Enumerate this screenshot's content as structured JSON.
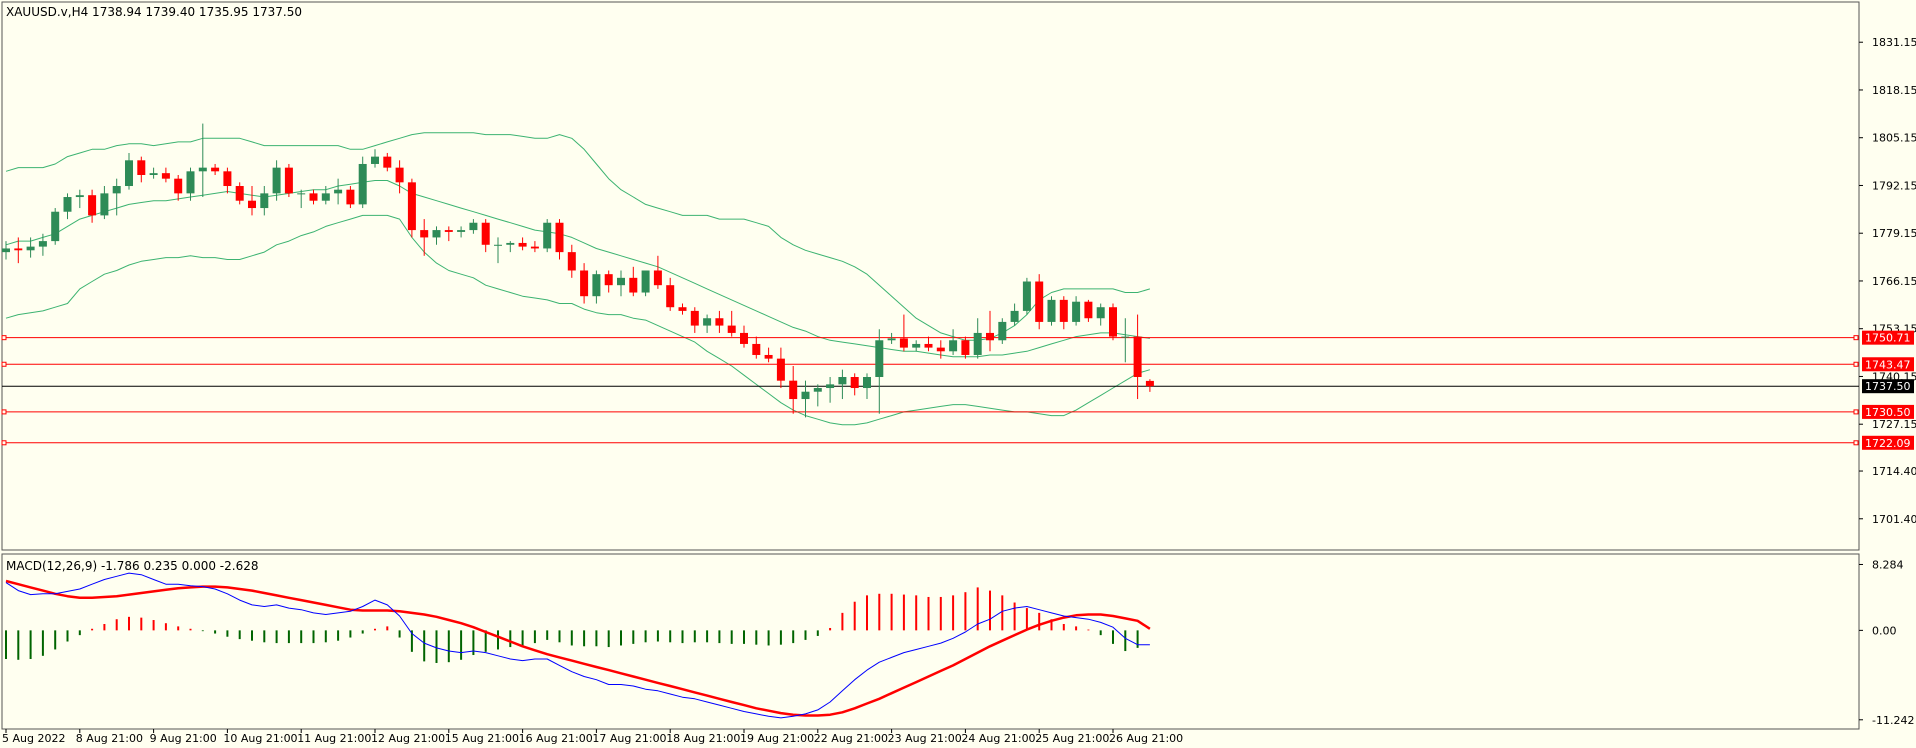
{
  "chart_data": {
    "type": "candlestick",
    "symbol_header": "XAUUSD.v,H4  1738.94 1739.40 1735.95 1737.50",
    "price_axis": {
      "ylim": [
        1692.9,
        1842.1
      ],
      "ticks": [
        "1831.15",
        "1818.15",
        "1805.15",
        "1792.15",
        "1779.15",
        "1766.15",
        "1753.15",
        "1740.15",
        "1727.15",
        "1714.40",
        "1701.40"
      ]
    },
    "x_axis": {
      "ticks": [
        {
          "label": "5 Aug 2022",
          "bar": 0
        },
        {
          "label": "8 Aug 21:00",
          "bar": 6
        },
        {
          "label": "9 Aug 21:00",
          "bar": 12
        },
        {
          "label": "10 Aug 21:00",
          "bar": 18
        },
        {
          "label": "11 Aug 21:00",
          "bar": 24
        },
        {
          "label": "12 Aug 21:00",
          "bar": 30
        },
        {
          "label": "15 Aug 21:00",
          "bar": 36
        },
        {
          "label": "16 Aug 21:00",
          "bar": 42
        },
        {
          "label": "17 Aug 21:00",
          "bar": 48
        },
        {
          "label": "18 Aug 21:00",
          "bar": 54
        },
        {
          "label": "19 Aug 21:00",
          "bar": 60
        },
        {
          "label": "22 Aug 21:00",
          "bar": 66
        },
        {
          "label": "23 Aug 21:00",
          "bar": 72
        },
        {
          "label": "24 Aug 21:00",
          "bar": 78
        },
        {
          "label": "25 Aug 21:00",
          "bar": 84
        },
        {
          "label": "26 Aug 21:00",
          "bar": 90
        }
      ]
    },
    "candles": [
      [
        1774.0,
        1777.0,
        1772.0,
        1775.0
      ],
      [
        1775.0,
        1778.0,
        1771.0,
        1774.5
      ],
      [
        1774.5,
        1778.0,
        1772.5,
        1775.5
      ],
      [
        1775.5,
        1779.0,
        1773.0,
        1777.0
      ],
      [
        1777.0,
        1786.0,
        1776.0,
        1785.0
      ],
      [
        1785.0,
        1790.0,
        1783.0,
        1789.0
      ],
      [
        1789.0,
        1791.0,
        1786.0,
        1789.5
      ],
      [
        1789.5,
        1791.0,
        1782.0,
        1784.0
      ],
      [
        1784.0,
        1792.0,
        1783.0,
        1790.0
      ],
      [
        1790.0,
        1794.0,
        1784.0,
        1792.0
      ],
      [
        1792.0,
        1801.0,
        1791.0,
        1799.0
      ],
      [
        1799.0,
        1800.0,
        1793.0,
        1795.0
      ],
      [
        1795.0,
        1797.0,
        1794.0,
        1795.5
      ],
      [
        1795.5,
        1797.0,
        1793.0,
        1794.0
      ],
      [
        1794.0,
        1795.0,
        1788.0,
        1790.0
      ],
      [
        1790.0,
        1797.0,
        1788.0,
        1796.0
      ],
      [
        1796.0,
        1809.0,
        1789.0,
        1797.0
      ],
      [
        1797.0,
        1798.0,
        1795.0,
        1796.0
      ],
      [
        1796.0,
        1797.0,
        1790.0,
        1792.0
      ],
      [
        1792.0,
        1793.0,
        1787.0,
        1788.0
      ],
      [
        1788.0,
        1792.0,
        1784.0,
        1786.0
      ],
      [
        1786.0,
        1792.0,
        1784.0,
        1790.0
      ],
      [
        1790.0,
        1799.0,
        1788.0,
        1797.0
      ],
      [
        1797.0,
        1798.0,
        1789.0,
        1790.0
      ],
      [
        1790.0,
        1791.0,
        1786.0,
        1790.0
      ],
      [
        1790.0,
        1791.0,
        1787.0,
        1788.0
      ],
      [
        1788.0,
        1792.0,
        1787.0,
        1790.0
      ],
      [
        1790.0,
        1794.0,
        1787.0,
        1791.0
      ],
      [
        1791.0,
        1792.0,
        1786.0,
        1787.0
      ],
      [
        1787.0,
        1800.0,
        1786.0,
        1798.0
      ],
      [
        1798.0,
        1802.0,
        1797.0,
        1800.0
      ],
      [
        1800.0,
        1801.0,
        1796.0,
        1797.0
      ],
      [
        1797.0,
        1799.0,
        1790.0,
        1793.0
      ],
      [
        1793.0,
        1794.0,
        1778.0,
        1780.0
      ],
      [
        1780.0,
        1783.0,
        1773.0,
        1778.0
      ],
      [
        1778.0,
        1781.0,
        1776.0,
        1780.0
      ],
      [
        1780.0,
        1781.0,
        1777.0,
        1779.5
      ],
      [
        1779.5,
        1781.0,
        1778.0,
        1780.0
      ],
      [
        1780.0,
        1783.0,
        1779.0,
        1782.0
      ],
      [
        1782.0,
        1783.0,
        1774.0,
        1776.0
      ],
      [
        1776.0,
        1778.0,
        1771.0,
        1776.0
      ],
      [
        1776.0,
        1777.0,
        1774.0,
        1776.5
      ],
      [
        1776.5,
        1778.0,
        1774.5,
        1775.5
      ],
      [
        1775.5,
        1777.0,
        1774.0,
        1775.0
      ],
      [
        1775.0,
        1783.0,
        1774.0,
        1782.0
      ],
      [
        1782.0,
        1783.0,
        1772.0,
        1774.0
      ],
      [
        1774.0,
        1776.0,
        1767.0,
        1769.0
      ],
      [
        1769.0,
        1771.0,
        1760.0,
        1762.0
      ],
      [
        1762.0,
        1769.0,
        1760.0,
        1768.0
      ],
      [
        1768.0,
        1769.0,
        1763.0,
        1765.0
      ],
      [
        1765.0,
        1769.0,
        1762.0,
        1767.0
      ],
      [
        1767.0,
        1770.0,
        1762.0,
        1763.0
      ],
      [
        1763.0,
        1769.0,
        1762.0,
        1769.0
      ],
      [
        1769.0,
        1773.0,
        1764.0,
        1765.0
      ],
      [
        1765.0,
        1767.0,
        1758.0,
        1759.0
      ],
      [
        1759.0,
        1760.0,
        1757.0,
        1758.0
      ],
      [
        1758.0,
        1759.0,
        1752.0,
        1754.0
      ],
      [
        1754.0,
        1757.0,
        1752.0,
        1756.0
      ],
      [
        1756.0,
        1758.0,
        1752.0,
        1754.0
      ],
      [
        1754.0,
        1758.0,
        1751.0,
        1752.0
      ],
      [
        1752.0,
        1754.0,
        1748.0,
        1749.0
      ],
      [
        1749.0,
        1751.0,
        1745.0,
        1746.0
      ],
      [
        1746.0,
        1748.0,
        1744.0,
        1745.0
      ],
      [
        1745.0,
        1748.0,
        1737.0,
        1739.0
      ],
      [
        1739.0,
        1743.0,
        1730.0,
        1734.0
      ],
      [
        1734.0,
        1739.0,
        1729.0,
        1736.0
      ],
      [
        1736.0,
        1738.0,
        1732.0,
        1737.0
      ],
      [
        1737.0,
        1740.0,
        1733.0,
        1738.0
      ],
      [
        1738.0,
        1742.0,
        1734.0,
        1740.0
      ],
      [
        1740.0,
        1741.0,
        1735.0,
        1737.0
      ],
      [
        1737.0,
        1741.0,
        1734.0,
        1740.0
      ],
      [
        1740.0,
        1753.0,
        1730.0,
        1750.0
      ],
      [
        1750.0,
        1752.0,
        1749.0,
        1750.5
      ],
      [
        1750.5,
        1757.0,
        1747.0,
        1748.0
      ],
      [
        1748.0,
        1750.0,
        1747.0,
        1749.0
      ],
      [
        1749.0,
        1751.0,
        1747.0,
        1748.0
      ],
      [
        1748.0,
        1750.0,
        1745.0,
        1747.0
      ],
      [
        1747.0,
        1753.0,
        1746.0,
        1750.0
      ],
      [
        1750.0,
        1751.0,
        1745.0,
        1746.0
      ],
      [
        1746.0,
        1756.0,
        1745.0,
        1752.0
      ],
      [
        1752.0,
        1758.0,
        1747.0,
        1750.0
      ],
      [
        1750.0,
        1756.0,
        1749.0,
        1755.0
      ],
      [
        1755.0,
        1760.0,
        1754.0,
        1758.0
      ],
      [
        1758.0,
        1767.0,
        1757.0,
        1766.0
      ],
      [
        1766.0,
        1768.0,
        1753.0,
        1755.0
      ],
      [
        1755.0,
        1762.0,
        1754.0,
        1761.0
      ],
      [
        1761.0,
        1762.0,
        1753.0,
        1755.0
      ],
      [
        1755.0,
        1762.0,
        1754.0,
        1760.5
      ],
      [
        1760.5,
        1761.0,
        1755.0,
        1756.0
      ],
      [
        1756.0,
        1760.0,
        1754.0,
        1759.0
      ],
      [
        1759.0,
        1760.0,
        1750.0,
        1751.0
      ],
      [
        1751.0,
        1756.0,
        1744.0,
        1751.0
      ],
      [
        1751.0,
        1757.0,
        1734.0,
        1740.0
      ],
      [
        1738.94,
        1739.4,
        1735.95,
        1737.5
      ]
    ],
    "bollinger": {
      "upper": [
        1796.0,
        1797.0,
        1797.0,
        1797.0,
        1798.0,
        1800.0,
        1801.0,
        1802.0,
        1802.0,
        1803.0,
        1803.5,
        1803.5,
        1803.0,
        1803.5,
        1804.0,
        1804.0,
        1805.0,
        1805.0,
        1805.0,
        1805.0,
        1804.0,
        1803.0,
        1803.0,
        1803.0,
        1803.0,
        1803.0,
        1803.0,
        1803.0,
        1802.0,
        1802.0,
        1803.0,
        1804.0,
        1805.0,
        1806.0,
        1806.5,
        1806.5,
        1806.5,
        1806.5,
        1806.5,
        1806.0,
        1806.0,
        1806.0,
        1805.5,
        1805.0,
        1805.0,
        1806.0,
        1805.0,
        1802.0,
        1798.0,
        1794.0,
        1791.0,
        1789.0,
        1787.0,
        1786.0,
        1785.0,
        1784.0,
        1784.0,
        1784.0,
        1783.0,
        1783.0,
        1783.0,
        1782.0,
        1781.0,
        1778.0,
        1776.0,
        1774.5,
        1773.5,
        1772.5,
        1771.5,
        1770.0,
        1768.0,
        1765.0,
        1762.0,
        1759.0,
        1756.0,
        1754.0,
        1752.0,
        1751.0,
        1750.0,
        1750.0,
        1750.5,
        1752.0,
        1754.0,
        1757.0,
        1761.0,
        1763.0,
        1764.0,
        1764.0,
        1764.0,
        1764.0,
        1764.0,
        1763.0,
        1763.0,
        1764.0
      ],
      "middle": [
        1776.0,
        1777.0,
        1777.0,
        1778.0,
        1779.0,
        1781.0,
        1783.0,
        1784.0,
        1785.0,
        1786.0,
        1787.0,
        1787.5,
        1788.0,
        1788.0,
        1788.5,
        1789.0,
        1789.5,
        1790.0,
        1790.5,
        1790.0,
        1789.5,
        1789.0,
        1789.5,
        1790.0,
        1790.5,
        1791.0,
        1791.0,
        1792.0,
        1792.5,
        1793.0,
        1793.5,
        1793.5,
        1792.0,
        1790.0,
        1789.0,
        1788.0,
        1787.0,
        1786.0,
        1785.0,
        1784.0,
        1783.0,
        1782.0,
        1781.0,
        1780.0,
        1779.5,
        1779.0,
        1778.0,
        1776.5,
        1775.0,
        1774.0,
        1773.0,
        1772.0,
        1771.0,
        1770.0,
        1768.5,
        1767.0,
        1765.5,
        1764.0,
        1762.5,
        1761.0,
        1759.5,
        1758.0,
        1756.5,
        1755.0,
        1753.5,
        1752.5,
        1751.0,
        1750.0,
        1749.5,
        1749.0,
        1748.5,
        1748.0,
        1747.5,
        1747.0,
        1747.0,
        1746.5,
        1746.0,
        1745.5,
        1745.5,
        1745.5,
        1746.0,
        1746.0,
        1746.5,
        1747.0,
        1748.0,
        1749.0,
        1750.0,
        1751.0,
        1751.5,
        1752.0,
        1752.0,
        1751.5,
        1751.0,
        1750.5
      ],
      "lower": [
        1756.0,
        1757.0,
        1757.5,
        1758.0,
        1759.0,
        1760.0,
        1764.0,
        1766.0,
        1768.0,
        1769.0,
        1770.5,
        1771.5,
        1772.0,
        1772.5,
        1772.5,
        1773.0,
        1772.5,
        1772.5,
        1772.0,
        1772.0,
        1773.0,
        1774.0,
        1776.0,
        1777.0,
        1778.5,
        1779.5,
        1781.0,
        1782.0,
        1783.0,
        1784.0,
        1784.0,
        1784.0,
        1783.0,
        1778.0,
        1774.0,
        1771.0,
        1769.0,
        1768.0,
        1767.0,
        1765.0,
        1764.0,
        1763.0,
        1762.0,
        1761.5,
        1761.0,
        1760.0,
        1760.0,
        1758.5,
        1757.5,
        1757.0,
        1757.0,
        1756.0,
        1755.5,
        1754.0,
        1752.5,
        1751.0,
        1749.5,
        1747.0,
        1745.0,
        1743.0,
        1740.5,
        1738.0,
        1735.5,
        1733.0,
        1731.0,
        1729.5,
        1728.5,
        1727.5,
        1727.0,
        1727.0,
        1727.5,
        1728.5,
        1729.5,
        1730.5,
        1731.0,
        1731.5,
        1732.0,
        1732.5,
        1732.5,
        1732.0,
        1731.5,
        1731.0,
        1730.5,
        1730.5,
        1730.0,
        1729.5,
        1729.5,
        1731.0,
        1733.0,
        1735.0,
        1737.0,
        1739.0,
        1741.0,
        1742.0
      ]
    },
    "hlines": [
      {
        "label": "1750.71",
        "value": 1750.71,
        "color": "#ff0000"
      },
      {
        "label": "1743.47",
        "value": 1743.47,
        "color": "#ff0000"
      },
      {
        "label": "1737.50",
        "value": 1737.5,
        "color": "#000000"
      },
      {
        "label": "1730.50",
        "value": 1730.5,
        "color": "#ff0000"
      },
      {
        "label": "1722.09",
        "value": 1722.09,
        "color": "#ff0000"
      }
    ],
    "macd": {
      "header": "MACD(12,26,9) -1.786 0.235 0.000 -2.628",
      "ylim": [
        -12.4,
        9.6
      ],
      "ticks": [
        "8.284",
        "0.00",
        "-11.242"
      ],
      "signal": [
        6.2,
        5.8,
        5.4,
        5.0,
        4.6,
        4.3,
        4.1,
        4.1,
        4.2,
        4.3,
        4.5,
        4.7,
        4.9,
        5.1,
        5.3,
        5.4,
        5.5,
        5.5,
        5.4,
        5.2,
        5.0,
        4.7,
        4.4,
        4.1,
        3.8,
        3.5,
        3.2,
        2.9,
        2.6,
        2.5,
        2.5,
        2.5,
        2.4,
        2.2,
        2.0,
        1.7,
        1.3,
        0.9,
        0.4,
        -0.2,
        -0.8,
        -1.4,
        -2.0,
        -2.5,
        -3.0,
        -3.4,
        -3.8,
        -4.2,
        -4.6,
        -5.0,
        -5.4,
        -5.8,
        -6.2,
        -6.6,
        -7.0,
        -7.4,
        -7.8,
        -8.2,
        -8.6,
        -9.0,
        -9.4,
        -9.8,
        -10.1,
        -10.4,
        -10.6,
        -10.7,
        -10.7,
        -10.6,
        -10.3,
        -9.8,
        -9.2,
        -8.6,
        -7.9,
        -7.2,
        -6.5,
        -5.8,
        -5.1,
        -4.4,
        -3.6,
        -2.8,
        -2.0,
        -1.3,
        -0.6,
        0.1,
        0.7,
        1.2,
        1.6,
        1.9,
        2.0,
        2.0,
        1.8,
        1.5,
        1.2,
        0.2
      ],
      "macd_line": [
        6.0,
        5.0,
        4.5,
        4.6,
        4.6,
        4.9,
        5.2,
        5.8,
        6.4,
        6.8,
        7.2,
        7.0,
        6.4,
        5.8,
        5.8,
        5.6,
        5.5,
        5.2,
        4.6,
        3.8,
        3.2,
        3.0,
        3.2,
        2.8,
        2.6,
        2.2,
        2.0,
        2.2,
        2.4,
        3.0,
        3.8,
        3.2,
        1.8,
        -0.4,
        -1.6,
        -2.2,
        -2.6,
        -2.8,
        -2.6,
        -2.8,
        -3.2,
        -3.6,
        -3.8,
        -3.6,
        -3.6,
        -4.4,
        -5.2,
        -5.8,
        -6.2,
        -6.8,
        -6.8,
        -7.0,
        -7.4,
        -7.6,
        -8.0,
        -8.4,
        -8.6,
        -9.0,
        -9.4,
        -9.8,
        -10.2,
        -10.5,
        -10.8,
        -11.0,
        -10.8,
        -10.5,
        -10.0,
        -9.0,
        -7.6,
        -6.2,
        -5.0,
        -4.0,
        -3.4,
        -2.8,
        -2.4,
        -2.0,
        -1.6,
        -1.0,
        -0.2,
        0.8,
        1.4,
        2.4,
        2.8,
        3.0,
        2.6,
        2.2,
        1.8,
        1.6,
        1.4,
        1.0,
        0.4,
        -1.0,
        -1.8,
        -1.8
      ],
      "histogram": [
        -3.6,
        -3.7,
        -3.6,
        -3.2,
        -2.4,
        -1.4,
        -0.6,
        0.2,
        0.8,
        1.4,
        1.7,
        1.6,
        1.3,
        0.9,
        0.5,
        0.2,
        -0.1,
        -0.4,
        -0.8,
        -1.1,
        -1.3,
        -1.5,
        -1.6,
        -1.6,
        -1.6,
        -1.6,
        -1.5,
        -1.3,
        -0.9,
        -0.4,
        0.2,
        0.5,
        -0.9,
        -2.7,
        -3.9,
        -4.1,
        -4.0,
        -3.7,
        -3.1,
        -2.7,
        -2.4,
        -2.1,
        -1.9,
        -1.6,
        -1.2,
        -1.5,
        -1.9,
        -2.0,
        -2.0,
        -2.1,
        -1.9,
        -1.7,
        -1.5,
        -1.4,
        -1.5,
        -1.6,
        -1.5,
        -1.5,
        -1.6,
        -1.7,
        -1.7,
        -1.8,
        -1.9,
        -1.8,
        -1.6,
        -1.2,
        -0.7,
        0.3,
        2.2,
        3.6,
        4.4,
        4.6,
        4.6,
        4.5,
        4.4,
        4.2,
        4.2,
        4.4,
        4.8,
        5.4,
        5.0,
        4.4,
        3.5,
        2.8,
        2.2,
        1.4,
        0.8,
        0.5,
        0.1,
        -0.6,
        -1.7,
        -2.6,
        -2.2
      ]
    },
    "colors": {
      "background": "#fffff0",
      "bull": "#2e8b57",
      "bear": "#ff0000",
      "bollinger": "#3cb371",
      "macd_line": "#0000ff",
      "signal_line": "#ff0000",
      "hist_pos": "#ff0000",
      "hist_neg": "#006400"
    }
  }
}
